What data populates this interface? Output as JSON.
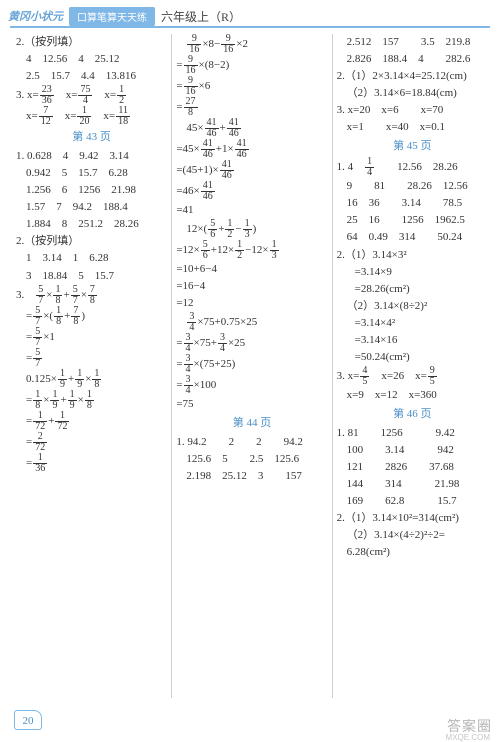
{
  "header": {
    "tag": "黄冈小状元",
    "pill": "口算笔算天天练",
    "grade": "六年级上（R）"
  },
  "pageNumber": "20",
  "watermark": "答案圈",
  "watermarkSub": "MXQE.COM",
  "col1": {
    "sec2title": "2.（按列填）",
    "r1": "4　12.56　4　25.12",
    "r2": "2.5　15.7　4.4　13.816",
    "sec3a": "3.",
    "sec3b": "23",
    "sec3c": "36",
    "sec3d": "75",
    "sec3e": "4",
    "sec3f": "1",
    "sec3g": "2",
    "sec3h": "7",
    "sec3i": "12",
    "sec3j": "1",
    "sec3k": "20",
    "sec3l": "11",
    "sec3m": "18",
    "pageRef43": "第 43 页",
    "t1": "1. 0.628　4　9.42　3.14",
    "t2": "0.942　5　15.7　6.28",
    "t3": "1.256　6　1256　21.98",
    "t4": "1.57　7　94.2　188.4",
    "t5": "1.884　8　251.2　28.26",
    "sec2btitle": "2.（按列填）",
    "u1": "1　3.14　1　6.28",
    "u2": "3　18.84　5　15.7",
    "sec3btitle": "3.",
    "f57n": "5",
    "f57d": "7",
    "f18n": "1",
    "f18d": "8",
    "f78n": "7",
    "f78d": "8",
    "eq1a": "=",
    "eq1txt": "×(",
    "eq2": "×1",
    "eq3n": "5",
    "eq3d": "7",
    "v1": "0.125×",
    "f19n": "1",
    "f19d": "9",
    "eq4": "=",
    "f172n": "1",
    "f172d": "72",
    "f272n": "2",
    "f272d": "72",
    "f136n": "1",
    "f136d": "36"
  },
  "col2": {
    "f916n": "9",
    "f916d": "16",
    "l1a": "×8−",
    "l1b": "×2",
    "l2": "×(8−2)",
    "l3": "×6",
    "f278n": "27",
    "f278d": "8",
    "l4a": "45×",
    "f4146n": "41",
    "f4146d": "46",
    "l5a": "=45×",
    "l5b": "+1×",
    "l6a": "=(45+1)×",
    "l7a": "=46×",
    "l8": "=41",
    "l9a": "12×(",
    "f56n": "5",
    "f56d": "6",
    "f12n": "1",
    "f12d": "2",
    "f13n": "1",
    "f13d": "3",
    "l10a": "=12×",
    "l10b": "+12×",
    "l10c": "−12×",
    "l11": "=10+6−4",
    "l12": "=16−4",
    "l13": "=12",
    "f34n": "3",
    "f34d": "4",
    "l14": "×75+0.75×25",
    "l15a": "=",
    "l15b": "×75+",
    "l15c": "×25",
    "l16": "×(75+25)",
    "l17": "×100",
    "l18": "=75",
    "pageRef44": "第 44 页",
    "b1": "1. 94.2　　2　　2　　94.2",
    "b2": "125.6　5　　2.5　125.6",
    "b3": "2.198　25.12　3　　157"
  },
  "col3": {
    "a1": "2.512　157　　3.5　219.8",
    "a2": "2.826　188.4　4　　282.6",
    "a3": "2.（1）2×3.14×4=25.12(cm)",
    "a4": "（2）3.14×6=18.84(cm)",
    "a5": "3. x=20　x=6　　x=70",
    "a6": "x=1　　x=40　x=0.1",
    "pageRef45": "第 45 页",
    "b1a": "1. 4",
    "f14n": "1",
    "f14d": "4",
    "b1b": "12.56　28.26",
    "b2": "9　　81　　28.26　12.56",
    "b3": "16　36　　3.14　　78.5",
    "b4": "25　16　　1256　1962.5",
    "b5": "64　0.49　314　　50.24",
    "c1": "2.（1）3.14×3²",
    "c2": "=3.14×9",
    "c3": "=28.26(cm²)",
    "c4": "（2）3.14×(8÷2)²",
    "c5": "=3.14×4²",
    "c6": "=3.14×16",
    "c7": "=50.24(cm²)",
    "d1a": "3. x=",
    "f45n": "4",
    "f45d": "5",
    "d1b": "x=26　x=",
    "f95n": "9",
    "f95d": "5",
    "d2": "x=9　x=12　x=360",
    "pageRef46": "第 46 页",
    "e1": "1. 81　　1256　　　9.42",
    "e2": "100　　3.14　　　942",
    "e3": "121　　2826　　37.68",
    "e4": "144　　314　　　21.98",
    "e5": "169　　62.8　　　15.7",
    "f1": "2.（1）3.14×10²=314(cm²)",
    "f2": "（2）3.14×(4÷2)²÷2=",
    "f3": "6.28(cm²)"
  }
}
